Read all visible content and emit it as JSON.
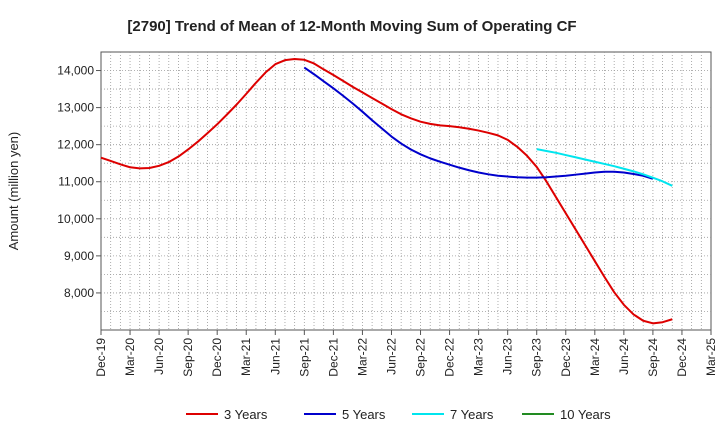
{
  "chart_data": {
    "type": "line",
    "title": "[2790]  Trend of Mean of 12-Month Moving Sum of Operating CF",
    "xlabel": "",
    "ylabel": "Amount (million yen)",
    "ylim": [
      7000,
      14500
    ],
    "y_ticks": [
      8000,
      9000,
      10000,
      11000,
      12000,
      13000,
      14000
    ],
    "y_tick_labels": [
      "8,000",
      "9,000",
      "10,000",
      "11,000",
      "12,000",
      "13,000",
      "14,000"
    ],
    "x_tick_labels": [
      "Dec-19",
      "Mar-20",
      "Jun-20",
      "Sep-20",
      "Dec-20",
      "Mar-21",
      "Jun-21",
      "Sep-21",
      "Dec-21",
      "Mar-22",
      "Jun-22",
      "Sep-22",
      "Dec-22",
      "Mar-23",
      "Jun-23",
      "Sep-23",
      "Dec-23",
      "Mar-24",
      "Jun-24",
      "Sep-24",
      "Dec-24",
      "Mar-25"
    ],
    "x_start": "Dec-19",
    "grid": true,
    "legend_position": "bottom",
    "series": [
      {
        "name": "3 Years",
        "color": "#dd0000",
        "start_month_index": 0,
        "values": [
          11650,
          11560,
          11470,
          11390,
          11360,
          11370,
          11430,
          11530,
          11680,
          11870,
          12080,
          12310,
          12550,
          12810,
          13080,
          13370,
          13670,
          13950,
          14170,
          14280,
          14310,
          14290,
          14190,
          14030,
          13880,
          13720,
          13560,
          13410,
          13260,
          13110,
          12960,
          12820,
          12710,
          12620,
          12560,
          12520,
          12500,
          12470,
          12430,
          12380,
          12320,
          12250,
          12130,
          11940,
          11700,
          11400,
          11010,
          10580,
          10150,
          9720,
          9290,
          8860,
          8430,
          8020,
          7680,
          7420,
          7250,
          7180,
          7210,
          7290
        ]
      },
      {
        "name": "5 Years",
        "color": "#0000cc",
        "start_month_index": 21,
        "values": [
          14080,
          13900,
          13710,
          13520,
          13320,
          13110,
          12890,
          12660,
          12440,
          12220,
          12030,
          11870,
          11740,
          11630,
          11540,
          11460,
          11380,
          11310,
          11250,
          11200,
          11160,
          11140,
          11120,
          11110,
          11110,
          11120,
          11140,
          11160,
          11190,
          11220,
          11250,
          11270,
          11270,
          11250,
          11210,
          11160,
          11080
        ]
      },
      {
        "name": "7 Years",
        "color": "#00e5ee",
        "start_month_index": 45,
        "values": [
          11880,
          11830,
          11780,
          11720,
          11660,
          11600,
          11540,
          11480,
          11420,
          11350,
          11280,
          11200,
          11110,
          11010,
          10890
        ]
      },
      {
        "name": "10 Years",
        "color": "#228b22",
        "start_month_index": 0,
        "values": []
      }
    ]
  }
}
